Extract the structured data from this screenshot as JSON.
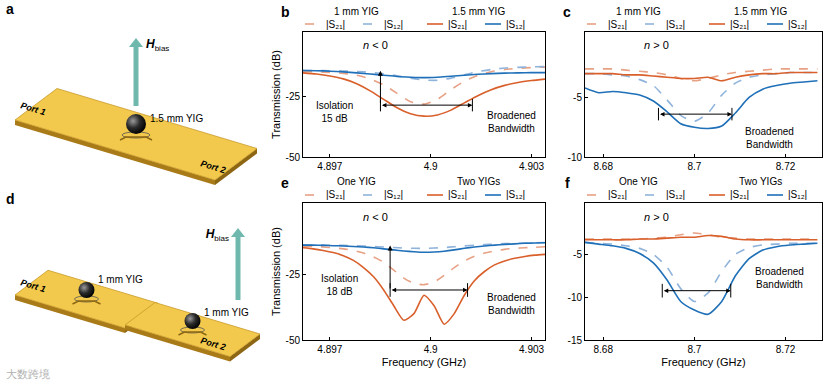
{
  "schematics": [
    {
      "panel": "a",
      "ports": [
        "Port 1",
        "Port 2"
      ],
      "field": {
        "symbol": "H",
        "subscript": "bias"
      },
      "spheres": [
        "1.5 mm YIG"
      ]
    },
    {
      "panel": "d",
      "ports": [
        "Port 1",
        "Port 2"
      ],
      "field": {
        "symbol": "H",
        "subscript": "bias"
      },
      "spheres": [
        "1 mm YIG",
        "1 mm YIG"
      ]
    }
  ],
  "watermark": "大数跨境",
  "chart_data": [
    {
      "panel": "b",
      "type": "line",
      "y_label": "Transmission (dB)",
      "grid": false,
      "x": [
        4.8962,
        4.8966,
        4.897,
        4.8974,
        4.8978,
        4.8982,
        4.8986,
        4.899,
        4.8994,
        4.8998,
        4.9002,
        4.9006,
        4.901,
        4.9014,
        4.9018,
        4.9022,
        4.9026,
        4.903,
        4.9034
      ],
      "xlim": [
        4.8962,
        4.9034
      ],
      "xticks": [
        4.897,
        4.9,
        4.903
      ],
      "ylim": [
        -50,
        2
      ],
      "yticks": [
        -50,
        -25
      ],
      "annotations": {
        "regime": "n < 0",
        "isolation": "Isolation\n15 dB",
        "bandwidth": "Broadened\nBandwidth"
      },
      "series": [
        {
          "name": "|S₂₁|",
          "group": "1 mm YIG",
          "color": "#e8a184",
          "line_style": "dashed",
          "values": [
            -14.5,
            -14.6,
            -14.8,
            -15.2,
            -16,
            -17.5,
            -20,
            -23.5,
            -27,
            -28,
            -26,
            -22,
            -18.5,
            -16,
            -14.5,
            -13.6,
            -13.1,
            -12.8,
            -12.6
          ]
        },
        {
          "name": "|S₁₂|",
          "group": "1 mm YIG",
          "color": "#8fb3da",
          "line_style": "dashed",
          "values": [
            -14,
            -14,
            -14.1,
            -14.2,
            -14.4,
            -14.8,
            -15.4,
            -16.2,
            -17.2,
            -18,
            -18.1,
            -17.2,
            -15.8,
            -14.5,
            -13.6,
            -13,
            -12.7,
            -12.5,
            -12.4
          ]
        },
        {
          "name": "|S₂₁|",
          "group": "1.5 mm YIG",
          "color": "#d95f2b",
          "line_style": "solid",
          "values": [
            -15,
            -15.5,
            -16.3,
            -17.5,
            -19.5,
            -22.5,
            -26,
            -29.5,
            -32,
            -33,
            -32.5,
            -30.5,
            -27.5,
            -24.5,
            -22,
            -20.2,
            -19,
            -18.2,
            -17.6
          ]
        },
        {
          "name": "|S₁₂|",
          "group": "1.5 mm YIG",
          "color": "#1f70b8",
          "line_style": "solid",
          "values": [
            -14,
            -14.1,
            -14.3,
            -14.6,
            -15,
            -15.5,
            -16,
            -16.5,
            -16.8,
            -17,
            -16.8,
            -16.4,
            -16,
            -15.6,
            -15.3,
            -15.1,
            -15,
            -14.9,
            -14.9
          ]
        }
      ]
    },
    {
      "panel": "c",
      "type": "line",
      "grid": false,
      "x": [
        8.676,
        8.679,
        8.682,
        8.685,
        8.688,
        8.691,
        8.694,
        8.697,
        8.7,
        8.703,
        8.706,
        8.709,
        8.712,
        8.715,
        8.718,
        8.721,
        8.724,
        8.727
      ],
      "xlim": [
        8.676,
        8.728
      ],
      "xticks": [
        8.68,
        8.7,
        8.72
      ],
      "ylim": [
        -10,
        0.5
      ],
      "yticks": [
        -10,
        -5
      ],
      "annotations": {
        "regime": "n > 0",
        "bandwidth": "Broadened\nBandwidth"
      },
      "series": [
        {
          "name": "|S₂₁|",
          "group": "1 mm YIG",
          "color": "#e8a184",
          "line_style": "dashed",
          "values": [
            -2.6,
            -2.6,
            -2.6,
            -2.7,
            -2.8,
            -2.9,
            -3.1,
            -3.4,
            -3.6,
            -3.4,
            -3.1,
            -2.9,
            -2.8,
            -2.7,
            -2.6,
            -2.6,
            -2.6,
            -2.6
          ]
        },
        {
          "name": "|S₁₂|",
          "group": "1 mm YIG",
          "color": "#8fb3da",
          "line_style": "dashed",
          "values": [
            -3,
            -3,
            -3.1,
            -3.2,
            -3.5,
            -4,
            -5.2,
            -6.5,
            -7,
            -6.3,
            -4.8,
            -3.8,
            -3.3,
            -3.1,
            -3,
            -2.9,
            -2.9,
            -2.9
          ]
        },
        {
          "name": "|S₂₁|",
          "group": "1.5 mm YIG",
          "color": "#d95f2b",
          "line_style": "solid",
          "values": [
            -3,
            -3,
            -3,
            -3.1,
            -3.1,
            -3.2,
            -3.3,
            -3.4,
            -3.4,
            -3.3,
            -3.6,
            -3.3,
            -3.1,
            -3,
            -3,
            -2.9,
            -2.9,
            -2.9
          ]
        },
        {
          "name": "|S₁₂|",
          "group": "1.5 mm YIG",
          "color": "#1f70b8",
          "line_style": "solid",
          "values": [
            -4.2,
            -4.6,
            -4.5,
            -4.6,
            -4.8,
            -5.3,
            -6.2,
            -7.2,
            -7.5,
            -7.6,
            -7.4,
            -6.3,
            -5,
            -4.3,
            -4,
            -3.8,
            -3.7,
            -3.6
          ]
        }
      ]
    },
    {
      "panel": "e",
      "type": "line",
      "x_label": "Frequency (GHz)",
      "y_label": "Transmission (dB)",
      "grid": false,
      "x": [
        4.8962,
        4.8965,
        4.8968,
        4.8971,
        4.8974,
        4.8977,
        4.898,
        4.8983,
        4.8986,
        4.8989,
        4.8992,
        4.8995,
        4.8998,
        4.9001,
        4.9004,
        4.9007,
        4.901,
        4.9013,
        4.9016,
        4.9019,
        4.9022,
        4.9025,
        4.9028,
        4.9031,
        4.9034
      ],
      "xlim": [
        4.8962,
        4.9034
      ],
      "xticks": [
        4.897,
        4.9,
        4.903
      ],
      "ylim": [
        -50,
        2
      ],
      "yticks": [
        -50,
        -25
      ],
      "annotations": {
        "regime": "n < 0",
        "isolation": "Isolation\n18 dB",
        "bandwidth": "Broadened\nBandwidth"
      },
      "series": [
        {
          "name": "|S₂₁|",
          "group": "One YIG",
          "color": "#e8a184",
          "line_style": "dashed",
          "values": [
            -14.5,
            -14.6,
            -14.7,
            -15,
            -15.4,
            -16,
            -17,
            -18.5,
            -20.5,
            -23.5,
            -26.5,
            -28.5,
            -29,
            -28,
            -25.5,
            -22.5,
            -20,
            -18.2,
            -17,
            -16.2,
            -15.6,
            -15.2,
            -15,
            -14.8,
            -14.6
          ]
        },
        {
          "name": "|S₁₂|",
          "group": "One YIG",
          "color": "#8fb3da",
          "line_style": "dashed",
          "values": [
            -14,
            -14,
            -14,
            -14.1,
            -14.1,
            -14.2,
            -14.3,
            -14.5,
            -14.7,
            -14.9,
            -15.1,
            -15.2,
            -15.2,
            -15.1,
            -14.9,
            -14.6,
            -14.3,
            -14,
            -13.8,
            -13.6,
            -13.4,
            -13.3,
            -13.2,
            -13.1,
            -13
          ]
        },
        {
          "name": "|S₂₁|",
          "group": "Two YIGs",
          "color": "#d95f2b",
          "line_style": "solid",
          "values": [
            -15,
            -15.4,
            -16,
            -16.8,
            -18,
            -19.8,
            -22.5,
            -26,
            -31,
            -37,
            -42.5,
            -40,
            -33,
            -37,
            -44,
            -40,
            -33,
            -27.5,
            -24,
            -21.5,
            -20,
            -19,
            -18.3,
            -17.8,
            -17.5
          ]
        },
        {
          "name": "|S₁₂|",
          "group": "Two YIGs",
          "color": "#1f70b8",
          "line_style": "solid",
          "values": [
            -14,
            -14,
            -14.1,
            -14.2,
            -14.3,
            -14.5,
            -14.7,
            -15,
            -15.4,
            -15.8,
            -16.2,
            -16.5,
            -16.7,
            -16.6,
            -16.3,
            -15.8,
            -15.2,
            -14.7,
            -14.3,
            -14,
            -13.7,
            -13.5,
            -13.3,
            -13.2,
            -13.1
          ]
        }
      ]
    },
    {
      "panel": "f",
      "type": "line",
      "x_label": "Frequency (GHz)",
      "grid": false,
      "x": [
        8.676,
        8.679,
        8.682,
        8.685,
        8.688,
        8.691,
        8.694,
        8.697,
        8.7,
        8.703,
        8.706,
        8.709,
        8.712,
        8.715,
        8.718,
        8.721,
        8.724,
        8.727
      ],
      "xlim": [
        8.676,
        8.728
      ],
      "xticks": [
        8.68,
        8.7,
        8.72
      ],
      "ylim": [
        -15,
        1
      ],
      "yticks": [
        -15,
        -10,
        -5
      ],
      "annotations": {
        "regime": "n > 0",
        "bandwidth": "Broadened\nBandwidth"
      },
      "series": [
        {
          "name": "|S₂₁|",
          "group": "One YIG",
          "color": "#e8a184",
          "line_style": "dashed",
          "values": [
            -3.2,
            -3.2,
            -3.2,
            -3.2,
            -3.2,
            -3.1,
            -3,
            -2.7,
            -2.5,
            -2.7,
            -3,
            -3.1,
            -3.2,
            -3.2,
            -3.2,
            -3.2,
            -3.2,
            -3.2
          ]
        },
        {
          "name": "|S₁₂|",
          "group": "One YIG",
          "color": "#8fb3da",
          "line_style": "dashed",
          "values": [
            -3.6,
            -3.7,
            -3.8,
            -4,
            -4.3,
            -5,
            -6.5,
            -9,
            -10.5,
            -9.5,
            -7,
            -5,
            -4.2,
            -3.9,
            -3.8,
            -3.7,
            -3.7,
            -3.7
          ]
        },
        {
          "name": "|S₂₁|",
          "group": "Two YIGs",
          "color": "#d95f2b",
          "line_style": "solid",
          "values": [
            -3.3,
            -3.3,
            -3.3,
            -3.3,
            -3.2,
            -3.2,
            -3.1,
            -3,
            -3,
            -2.8,
            -2.9,
            -3.2,
            -3.3,
            -3.3,
            -3.3,
            -3.3,
            -3.3,
            -3.3
          ]
        },
        {
          "name": "|S₁₂|",
          "group": "Two YIGs",
          "color": "#1f70b8",
          "line_style": "solid",
          "values": [
            -3.6,
            -3.8,
            -4,
            -4.3,
            -4.9,
            -6,
            -8,
            -10.5,
            -11.5,
            -12,
            -10.5,
            -7.5,
            -5.5,
            -4.5,
            -4.1,
            -3.9,
            -3.8,
            -3.7
          ]
        }
      ]
    }
  ]
}
